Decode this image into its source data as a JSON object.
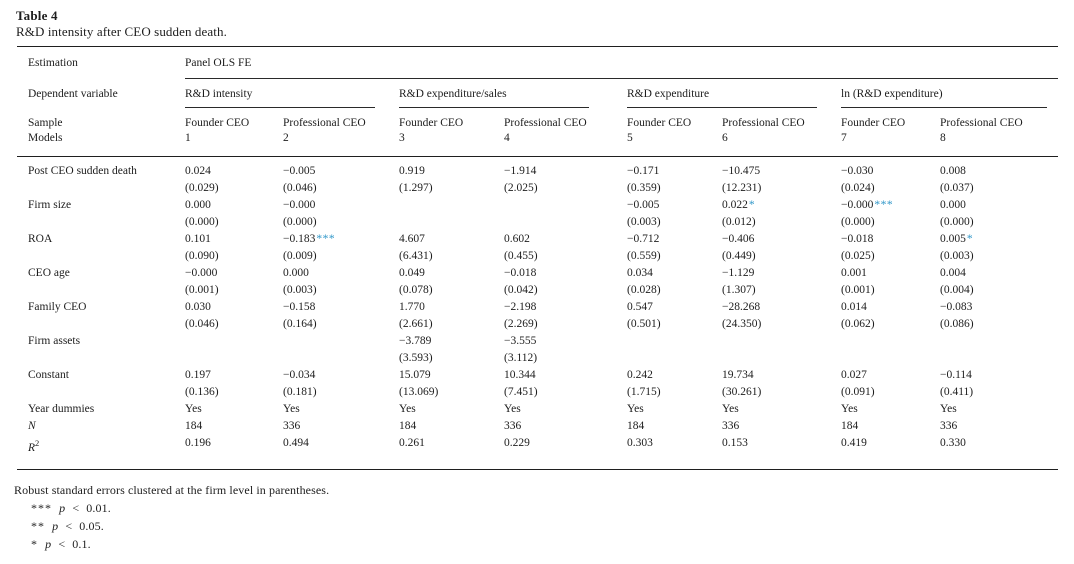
{
  "title": "Table 4",
  "subtitle": "R&D intensity after CEO sudden death.",
  "table": {
    "estimation_label": "Estimation",
    "estimation_value": "Panel OLS FE",
    "dependent_variable_label": "Dependent variable",
    "groups": [
      "R&D intensity",
      "R&D expenditure/sales",
      "R&D expenditure",
      "ln (R&D expenditure)"
    ],
    "sample_label": "Sample",
    "models_label": "Models",
    "columns": [
      {
        "sample": "Founder CEO",
        "model": "1"
      },
      {
        "sample": "Professional CEO",
        "model": "2"
      },
      {
        "sample": "Founder CEO",
        "model": "3"
      },
      {
        "sample": "Professional CEO",
        "model": "4"
      },
      {
        "sample": "Founder CEO",
        "model": "5"
      },
      {
        "sample": "Professional CEO",
        "model": "6"
      },
      {
        "sample": "Founder CEO",
        "model": "7"
      },
      {
        "sample": "Professional CEO",
        "model": "8"
      }
    ],
    "rows": [
      {
        "label": "Post CEO sudden death",
        "est": [
          "0.024",
          "−0.005",
          "0.919",
          "−1.914",
          "−0.171",
          "−10.475",
          "−0.030",
          "0.008"
        ],
        "se": [
          "(0.029)",
          "(0.046)",
          "(1.297)",
          "(2.025)",
          "(0.359)",
          "(12.231)",
          "(0.024)",
          "(0.037)"
        ]
      },
      {
        "label": "Firm size",
        "est": [
          "0.000",
          "−0.000",
          "",
          "",
          "−0.005",
          "0.022*",
          "−0.000***",
          "0.000"
        ],
        "se": [
          "(0.000)",
          "(0.000)",
          "",
          "",
          "(0.003)",
          "(0.012)",
          "(0.000)",
          "(0.000)"
        ]
      },
      {
        "label": "ROA",
        "est": [
          "0.101",
          "−0.183***",
          "4.607",
          "0.602",
          "−0.712",
          "−0.406",
          "−0.018",
          "0.005*"
        ],
        "se": [
          "(0.090)",
          "(0.009)",
          "(6.431)",
          "(0.455)",
          "(0.559)",
          "(0.449)",
          "(0.025)",
          "(0.003)"
        ]
      },
      {
        "label": "CEO age",
        "est": [
          "−0.000",
          "0.000",
          "0.049",
          "−0.018",
          "0.034",
          "−1.129",
          "0.001",
          "0.004"
        ],
        "se": [
          "(0.001)",
          "(0.003)",
          "(0.078)",
          "(0.042)",
          "(0.028)",
          "(1.307)",
          "(0.001)",
          "(0.004)"
        ]
      },
      {
        "label": "Family CEO",
        "est": [
          "0.030",
          "−0.158",
          "1.770",
          "−2.198",
          "0.547",
          "−28.268",
          "0.014",
          "−0.083"
        ],
        "se": [
          "(0.046)",
          "(0.164)",
          "(2.661)",
          "(2.269)",
          "(0.501)",
          "(24.350)",
          "(0.062)",
          "(0.086)"
        ]
      },
      {
        "label": "Firm assets",
        "est": [
          "",
          "",
          "−3.789",
          "−3.555",
          "",
          "",
          "",
          ""
        ],
        "se": [
          "",
          "",
          "(3.593)",
          "(3.112)",
          "",
          "",
          "",
          ""
        ]
      },
      {
        "label": "Constant",
        "est": [
          "0.197",
          "−0.034",
          "15.079",
          "10.344",
          "0.242",
          "19.734",
          "0.027",
          "−0.114"
        ],
        "se": [
          "(0.136)",
          "(0.181)",
          "(13.069)",
          "(7.451)",
          "(1.715)",
          "(30.261)",
          "(0.091)",
          "(0.411)"
        ]
      }
    ],
    "simple_rows": [
      {
        "label": "Year dummies",
        "italic": false,
        "values": [
          "Yes",
          "Yes",
          "Yes",
          "Yes",
          "Yes",
          "Yes",
          "Yes",
          "Yes"
        ]
      },
      {
        "label": "N",
        "italic": true,
        "values": [
          "184",
          "336",
          "184",
          "336",
          "184",
          "336",
          "184",
          "336"
        ]
      },
      {
        "label": "R",
        "label_sup": "2",
        "italic": true,
        "values": [
          "0.196",
          "0.494",
          "0.261",
          "0.229",
          "0.303",
          "0.153",
          "0.419",
          "0.330"
        ]
      }
    ]
  },
  "footnotes": {
    "note": "Robust standard errors clustered at the firm level in parentheses.",
    "sig": [
      {
        "stars": "***",
        "p": "p",
        "rest": "< 0.01."
      },
      {
        "stars": "**",
        "p": "p",
        "rest": "< 0.05."
      },
      {
        "stars": "*",
        "p": "p",
        "rest": "< 0.1."
      }
    ]
  },
  "colors": {
    "star_accent": "#2e96c8",
    "text": "#1d1d1d"
  }
}
